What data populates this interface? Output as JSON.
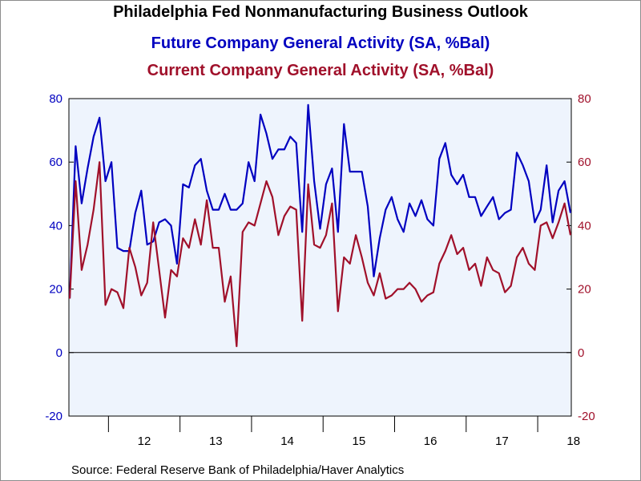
{
  "titles": {
    "main": "Philadelphia Fed Nonmanufacturing Business Outlook",
    "future_series": "Future Company General Activity (SA, %Bal)",
    "current_series": "Current Company General Activity (SA, %Bal)"
  },
  "source": "Source:  Federal Reserve Bank of Philadelphia/Haver Analytics",
  "colors": {
    "future": "#0000c0",
    "current": "#a0102a",
    "plot_bg": "#eef4fd",
    "zero_line": "#000000"
  },
  "chart_data": {
    "type": "line",
    "title": "Philadelphia Fed Nonmanufacturing Business Outlook",
    "x_start": "2011-06",
    "x_frequency": "monthly",
    "xlabel": "",
    "ylabel": "",
    "ylim": [
      -20,
      80
    ],
    "yticks": [
      -20,
      0,
      20,
      40,
      60,
      80
    ],
    "y_tick_labels": [
      "-20",
      "0",
      "20",
      "40",
      "60",
      "80"
    ],
    "x_tick_labels": [
      "12",
      "13",
      "14",
      "15",
      "16",
      "17",
      "18"
    ],
    "grid": false,
    "dual_axis": true,
    "series": [
      {
        "name": "Future Company General Activity (SA, %Bal)",
        "axis": "left",
        "values": [
          17,
          65,
          47,
          58,
          68,
          74,
          54,
          60,
          33,
          32,
          32,
          44,
          51,
          34,
          35,
          41,
          42,
          40,
          28,
          53,
          52,
          59,
          61,
          51,
          45,
          45,
          50,
          45,
          45,
          47,
          60,
          54,
          75,
          69,
          61,
          64,
          64,
          68,
          66,
          38,
          78,
          54,
          39,
          53,
          58,
          38,
          72,
          57,
          57,
          57,
          46,
          24,
          36,
          45,
          49,
          42,
          38,
          47,
          43,
          48,
          42,
          40,
          61,
          66,
          56,
          53,
          56,
          49,
          49,
          43,
          46,
          49,
          42,
          44,
          45,
          63,
          59,
          54,
          41,
          45,
          59,
          41,
          51,
          54,
          44
        ]
      },
      {
        "name": "Current Company General Activity (SA, %Bal)",
        "axis": "right",
        "values": [
          17,
          54,
          26,
          34,
          45,
          60,
          15,
          20,
          19,
          14,
          33,
          27,
          18,
          22,
          41,
          26,
          11,
          26,
          24,
          36,
          33,
          42,
          34,
          48,
          33,
          33,
          16,
          24,
          2,
          38,
          41,
          40,
          47,
          54,
          49,
          37,
          43,
          46,
          45,
          10,
          53,
          34,
          33,
          37,
          47,
          13,
          30,
          28,
          37,
          30,
          22,
          18,
          25,
          17,
          18,
          20,
          20,
          22,
          20,
          16,
          18,
          19,
          28,
          32,
          37,
          31,
          33,
          26,
          28,
          21,
          30,
          26,
          25,
          19,
          21,
          30,
          33,
          28,
          26,
          40,
          41,
          36,
          41,
          47,
          37
        ]
      }
    ]
  }
}
